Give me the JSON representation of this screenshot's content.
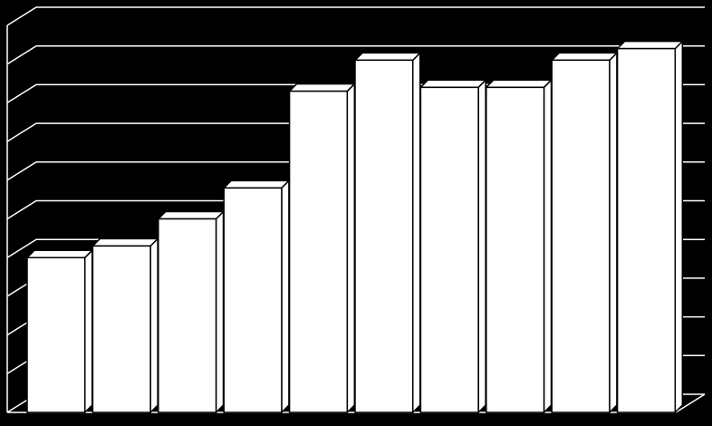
{
  "chart_data": {
    "type": "bar3d",
    "categories": [
      null,
      null,
      null,
      null,
      null,
      null,
      null,
      null,
      null,
      null
    ],
    "values": [
      4.0,
      4.3,
      5.0,
      5.8,
      8.3,
      9.1,
      8.4,
      8.4,
      9.1,
      9.4
    ],
    "color": "#ffffff",
    "background": "#000000",
    "grid_color": "#ffffff",
    "ylim": [
      0,
      10
    ],
    "yticks": [
      0,
      1,
      2,
      3,
      4,
      5,
      6,
      7,
      8,
      9,
      10
    ],
    "grid": true
  }
}
